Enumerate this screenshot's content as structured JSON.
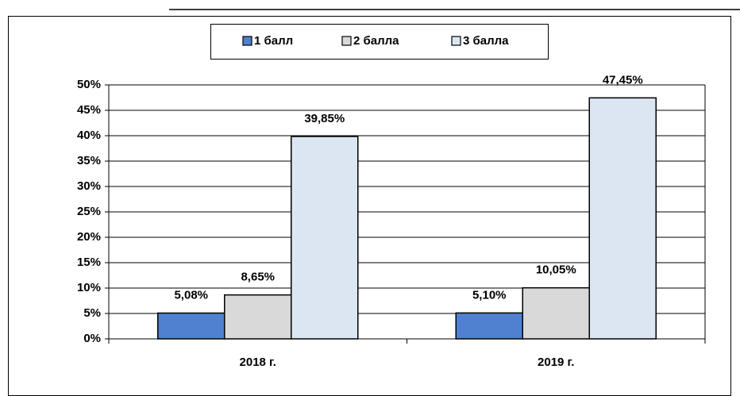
{
  "chart_data": {
    "type": "bar",
    "categories": [
      "2018 г.",
      "2019 г."
    ],
    "series": [
      {
        "name": "1 балл",
        "color": "#4f81d0",
        "values": [
          5.08,
          5.1
        ],
        "value_labels": [
          "5,08%",
          "5,10%"
        ]
      },
      {
        "name": "2 балла",
        "color": "#d9d9d9",
        "values": [
          8.65,
          10.05
        ],
        "value_labels": [
          "8,65%",
          "10,05%"
        ]
      },
      {
        "name": "3 балла",
        "color": "#dce6f2",
        "values": [
          39.85,
          47.45
        ],
        "value_labels": [
          "39,85%",
          "47,45%"
        ]
      }
    ],
    "ylim": [
      0,
      50
    ],
    "yticks": [
      {
        "value": 0,
        "label": "0%"
      },
      {
        "value": 5,
        "label": "5%"
      },
      {
        "value": 10,
        "label": "10%"
      },
      {
        "value": 15,
        "label": "15%"
      },
      {
        "value": 20,
        "label": "20%"
      },
      {
        "value": 25,
        "label": "25%"
      },
      {
        "value": 30,
        "label": "30%"
      },
      {
        "value": 35,
        "label": "35%"
      },
      {
        "value": 40,
        "label": "40%"
      },
      {
        "value": 45,
        "label": "45%"
      },
      {
        "value": 50,
        "label": "50%"
      }
    ],
    "grid": true,
    "legend": "top"
  }
}
